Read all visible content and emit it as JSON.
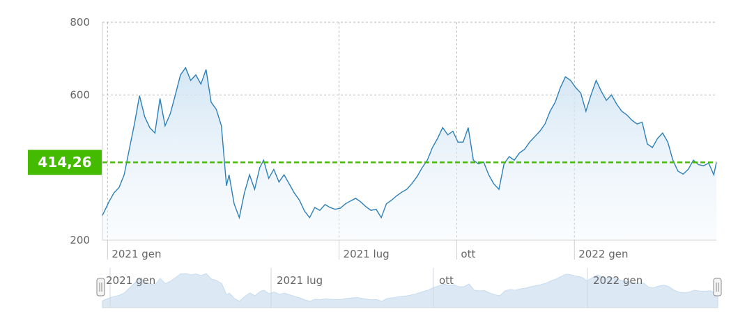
{
  "chart_data": {
    "type": "area",
    "title": "",
    "xlabel": "",
    "ylabel": "",
    "ylim": [
      200,
      800
    ],
    "y_ticks": [
      200,
      600,
      800
    ],
    "y_tick_labels": [
      "200",
      "600",
      "800"
    ],
    "x_ticks": [
      {
        "date": "2021-01-01",
        "label": "2021 gen"
      },
      {
        "date": "2021-07-01",
        "label": "2021 lug"
      },
      {
        "date": "2021-10-01",
        "label": "ott"
      },
      {
        "date": "2022-01-01",
        "label": "2022 gen"
      }
    ],
    "xlim": [
      "2020-12-28",
      "2022-04-22"
    ],
    "grid": true,
    "reference_line": {
      "value": 414.26,
      "label": "414,26",
      "color": "#44bb00"
    },
    "series": [
      {
        "color": "#2d7fb8",
        "points": [
          [
            "2020-12-28",
            268
          ],
          [
            "2021-01-02",
            305
          ],
          [
            "2021-01-06",
            330
          ],
          [
            "2021-01-10",
            345
          ],
          [
            "2021-01-14",
            380
          ],
          [
            "2021-01-18",
            450
          ],
          [
            "2021-01-22",
            520
          ],
          [
            "2021-01-26",
            598
          ],
          [
            "2021-01-30",
            540
          ],
          [
            "2021-02-03",
            510
          ],
          [
            "2021-02-07",
            495
          ],
          [
            "2021-02-11",
            590
          ],
          [
            "2021-02-15",
            515
          ],
          [
            "2021-02-19",
            548
          ],
          [
            "2021-02-23",
            600
          ],
          [
            "2021-02-27",
            655
          ],
          [
            "2021-03-03",
            675
          ],
          [
            "2021-03-07",
            640
          ],
          [
            "2021-03-11",
            655
          ],
          [
            "2021-03-15",
            630
          ],
          [
            "2021-03-19",
            670
          ],
          [
            "2021-03-23",
            580
          ],
          [
            "2021-03-27",
            560
          ],
          [
            "2021-03-31",
            515
          ],
          [
            "2021-04-04",
            350
          ],
          [
            "2021-04-06",
            380
          ],
          [
            "2021-04-10",
            300
          ],
          [
            "2021-04-14",
            262
          ],
          [
            "2021-04-18",
            330
          ],
          [
            "2021-04-22",
            380
          ],
          [
            "2021-04-26",
            340
          ],
          [
            "2021-04-30",
            400
          ],
          [
            "2021-05-03",
            420
          ],
          [
            "2021-05-07",
            370
          ],
          [
            "2021-05-11",
            395
          ],
          [
            "2021-05-15",
            360
          ],
          [
            "2021-05-19",
            380
          ],
          [
            "2021-05-23",
            355
          ],
          [
            "2021-05-27",
            330
          ],
          [
            "2021-05-31",
            310
          ],
          [
            "2021-06-04",
            280
          ],
          [
            "2021-06-08",
            262
          ],
          [
            "2021-06-12",
            290
          ],
          [
            "2021-06-16",
            282
          ],
          [
            "2021-06-20",
            298
          ],
          [
            "2021-06-24",
            290
          ],
          [
            "2021-06-28",
            285
          ],
          [
            "2021-07-02",
            288
          ],
          [
            "2021-07-06",
            300
          ],
          [
            "2021-07-10",
            308
          ],
          [
            "2021-07-14",
            315
          ],
          [
            "2021-07-18",
            305
          ],
          [
            "2021-07-22",
            292
          ],
          [
            "2021-07-26",
            282
          ],
          [
            "2021-07-30",
            285
          ],
          [
            "2021-08-03",
            262
          ],
          [
            "2021-08-07",
            300
          ],
          [
            "2021-08-11",
            310
          ],
          [
            "2021-08-15",
            322
          ],
          [
            "2021-08-19",
            332
          ],
          [
            "2021-08-23",
            340
          ],
          [
            "2021-08-27",
            356
          ],
          [
            "2021-08-31",
            375
          ],
          [
            "2021-09-04",
            400
          ],
          [
            "2021-09-08",
            420
          ],
          [
            "2021-09-12",
            455
          ],
          [
            "2021-09-16",
            480
          ],
          [
            "2021-09-20",
            510
          ],
          [
            "2021-09-24",
            490
          ],
          [
            "2021-09-28",
            500
          ],
          [
            "2021-10-02",
            470
          ],
          [
            "2021-10-06",
            470
          ],
          [
            "2021-10-10",
            510
          ],
          [
            "2021-10-14",
            420
          ],
          [
            "2021-10-18",
            410
          ],
          [
            "2021-10-22",
            415
          ],
          [
            "2021-10-26",
            380
          ],
          [
            "2021-10-30",
            355
          ],
          [
            "2021-11-03",
            340
          ],
          [
            "2021-11-07",
            410
          ],
          [
            "2021-11-11",
            430
          ],
          [
            "2021-11-15",
            420
          ],
          [
            "2021-11-19",
            440
          ],
          [
            "2021-11-23",
            450
          ],
          [
            "2021-11-27",
            470
          ],
          [
            "2021-12-01",
            485
          ],
          [
            "2021-12-05",
            500
          ],
          [
            "2021-12-09",
            520
          ],
          [
            "2021-12-13",
            555
          ],
          [
            "2021-12-17",
            580
          ],
          [
            "2021-12-21",
            620
          ],
          [
            "2021-12-25",
            650
          ],
          [
            "2021-12-29",
            640
          ],
          [
            "2022-01-02",
            620
          ],
          [
            "2022-01-06",
            605
          ],
          [
            "2022-01-10",
            555
          ],
          [
            "2022-01-14",
            600
          ],
          [
            "2022-01-18",
            640
          ],
          [
            "2022-01-22",
            610
          ],
          [
            "2022-01-26",
            585
          ],
          [
            "2022-01-30",
            600
          ],
          [
            "2022-02-03",
            575
          ],
          [
            "2022-02-07",
            555
          ],
          [
            "2022-02-11",
            545
          ],
          [
            "2022-02-15",
            530
          ],
          [
            "2022-02-19",
            520
          ],
          [
            "2022-02-23",
            525
          ],
          [
            "2022-02-27",
            465
          ],
          [
            "2022-03-03",
            455
          ],
          [
            "2022-03-07",
            480
          ],
          [
            "2022-03-11",
            495
          ],
          [
            "2022-03-15",
            470
          ],
          [
            "2022-03-19",
            420
          ],
          [
            "2022-03-23",
            390
          ],
          [
            "2022-03-27",
            382
          ],
          [
            "2022-03-31",
            395
          ],
          [
            "2022-04-04",
            420
          ],
          [
            "2022-04-08",
            408
          ],
          [
            "2022-04-12",
            405
          ],
          [
            "2022-04-16",
            412
          ],
          [
            "2022-04-20",
            380
          ],
          [
            "2022-04-22",
            414
          ]
        ]
      }
    ]
  },
  "navigator": {
    "labels": [
      "2021 gen",
      "2021 lug",
      "ott",
      "2022 gen"
    ],
    "handles": [
      "left-handle",
      "right-handle"
    ]
  }
}
